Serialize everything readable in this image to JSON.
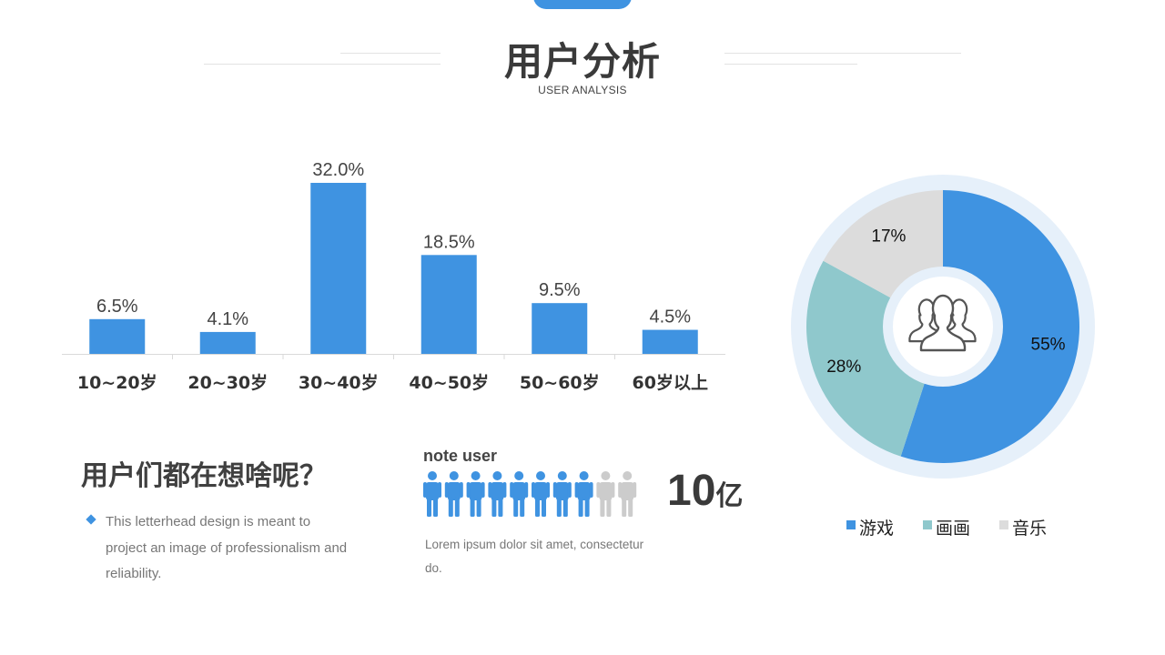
{
  "header": {
    "title": "用户分析",
    "subtitle": "USER ANALYSIS"
  },
  "colors": {
    "accent": "#3f93e1",
    "teal": "#8fc8cc",
    "gray": "#dcdcdc",
    "ring": "#e6f0fa",
    "person_inactive": "#cccccc"
  },
  "chart_data": [
    {
      "type": "bar",
      "categories": [
        "10~20岁",
        "20~30岁",
        "30~40岁",
        "40~50岁",
        "50~60岁",
        "60岁以上"
      ],
      "values": [
        6.5,
        4.1,
        32.0,
        18.5,
        9.5,
        4.5
      ],
      "data_labels": [
        "6.5%",
        "4.1%",
        "32.0%",
        "18.5%",
        "9.5%",
        "4.5%"
      ],
      "ylim": [
        0,
        32
      ],
      "grid": false,
      "color": "#3f93e1"
    },
    {
      "type": "pie",
      "style": "donut",
      "labels": [
        "游戏",
        "画画",
        "音乐"
      ],
      "values": [
        55,
        28,
        17
      ],
      "data_labels": [
        "55%",
        "28%",
        "17%"
      ],
      "colors": [
        "#3f93e1",
        "#8fc8cc",
        "#dcdcdc"
      ],
      "center_icon": "user-group-icon",
      "legend": "bottom"
    }
  ],
  "section": {
    "heading": "用户们都在想啥呢？",
    "bullet_text": "This letterhead design is meant to project an image of professionalism and reliability."
  },
  "users": {
    "label": "note user",
    "icon": "person-icon",
    "total_icons": 10,
    "active_icons": 8,
    "number": "10",
    "unit": "亿",
    "description": "Lorem ipsum dolor sit amet, consectetur do."
  }
}
